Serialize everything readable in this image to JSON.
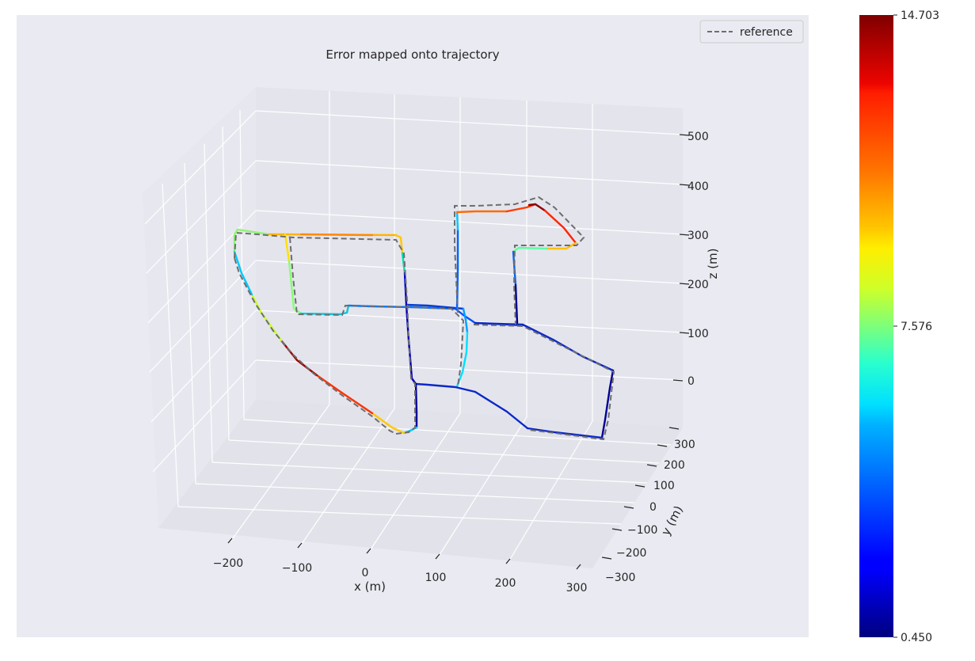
{
  "chart_data": {
    "type": "line",
    "title": "Error mapped onto trajectory",
    "xlabel": "x (m)",
    "ylabel": "y (m)",
    "zlabel": "z (m)",
    "projection": "3d",
    "grid": true,
    "legend": {
      "placement": "top-right",
      "entries": [
        "reference"
      ]
    },
    "x_ticks": [
      "−200",
      "−100",
      "0",
      "100",
      "200",
      "300"
    ],
    "y_ticks": [
      "300",
      "200",
      "100",
      "0",
      "−100",
      "−200",
      "−300"
    ],
    "z_ticks": [
      "500",
      "400",
      "300",
      "200",
      "100",
      "0"
    ],
    "colorbar": {
      "colormap": "jet",
      "min": 0.45,
      "max": 14.703,
      "tick_labels": [
        "14.703",
        "7.576",
        "0.450"
      ]
    },
    "series": [
      {
        "name": "reference",
        "style": "dashed",
        "color": "#6e6e6e"
      }
    ]
  },
  "colors": {
    "axes_background": "#eaeaf2",
    "pane_background": "#e5e5ee",
    "grid": "#ffffff",
    "reference_line": "#6e6e6e"
  }
}
